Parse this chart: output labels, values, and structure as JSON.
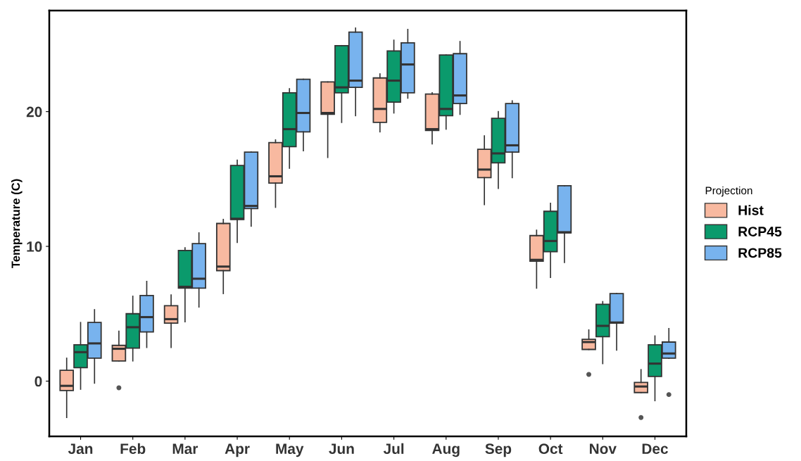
{
  "chart_data": {
    "type": "box",
    "ylabel": "Temperature (C)",
    "legend_title": "Projection",
    "legend": "right",
    "categories": [
      "Jan",
      "Feb",
      "Mar",
      "Apr",
      "May",
      "Jun",
      "Jul",
      "Aug",
      "Sep",
      "Oct",
      "Nov",
      "Dec"
    ],
    "ylim": [
      -4.1,
      27.5
    ],
    "yticks": [
      0,
      10,
      20
    ],
    "grid": false,
    "series": [
      {
        "name": "Hist",
        "color": "#f8b9a0",
        "boxes": [
          {
            "low": -2.7,
            "q1": -0.7,
            "median": -0.35,
            "q3": 0.8,
            "high": 1.7
          },
          {
            "low": 1.5,
            "q1": 1.5,
            "median": 2.4,
            "q3": 2.65,
            "high": 3.7,
            "outliers": [
              -0.5
            ]
          },
          {
            "low": 2.5,
            "q1": 4.3,
            "median": 4.6,
            "q3": 5.6,
            "high": 6.4
          },
          {
            "low": 6.5,
            "q1": 8.2,
            "median": 8.5,
            "q3": 11.7,
            "high": 12.0
          },
          {
            "low": 12.9,
            "q1": 14.7,
            "median": 15.2,
            "q3": 17.7,
            "high": 17.9
          },
          {
            "low": 16.6,
            "q1": 19.8,
            "median": 19.9,
            "q3": 22.2,
            "high": 22.2
          },
          {
            "low": 18.5,
            "q1": 19.2,
            "median": 20.2,
            "q3": 22.5,
            "high": 22.8
          },
          {
            "low": 17.6,
            "q1": 18.6,
            "median": 18.7,
            "q3": 21.3,
            "high": 21.4
          },
          {
            "low": 13.1,
            "q1": 15.1,
            "median": 15.7,
            "q3": 17.2,
            "high": 18.2
          },
          {
            "low": 6.9,
            "q1": 8.9,
            "median": 9.0,
            "q3": 10.8,
            "high": 11.2
          },
          {
            "low": 2.35,
            "q1": 2.35,
            "median": 2.9,
            "q3": 3.1,
            "high": 3.8,
            "outliers": [
              0.5
            ]
          },
          {
            "low": -0.85,
            "q1": -0.85,
            "median": -0.4,
            "q3": -0.1,
            "high": 0.85,
            "outliers": [
              -2.7
            ]
          }
        ]
      },
      {
        "name": "RCP45",
        "color": "#0b9a6c",
        "boxes": [
          {
            "low": -0.6,
            "q1": 1.0,
            "median": 2.15,
            "q3": 2.7,
            "high": 4.35
          },
          {
            "low": 1.5,
            "q1": 2.45,
            "median": 4.0,
            "q3": 5.0,
            "high": 6.3
          },
          {
            "low": 4.4,
            "q1": 6.9,
            "median": 7.0,
            "q3": 9.7,
            "high": 9.9
          },
          {
            "low": 10.3,
            "q1": 12.0,
            "median": 12.05,
            "q3": 16.0,
            "high": 16.4
          },
          {
            "low": 15.8,
            "q1": 17.4,
            "median": 18.7,
            "q3": 21.4,
            "high": 21.7
          },
          {
            "low": 19.2,
            "q1": 21.4,
            "median": 21.8,
            "q3": 24.9,
            "high": 24.9
          },
          {
            "low": 19.9,
            "q1": 20.7,
            "median": 22.3,
            "q3": 24.5,
            "high": 25.3
          },
          {
            "low": 18.7,
            "q1": 19.7,
            "median": 20.2,
            "q3": 24.2,
            "high": 24.2
          },
          {
            "low": 14.3,
            "q1": 16.2,
            "median": 16.9,
            "q3": 19.5,
            "high": 20.0
          },
          {
            "low": 7.7,
            "q1": 9.6,
            "median": 10.4,
            "q3": 12.6,
            "high": 13.2
          },
          {
            "low": 1.3,
            "q1": 3.3,
            "median": 4.1,
            "q3": 5.7,
            "high": 5.9
          },
          {
            "low": -1.45,
            "q1": 0.35,
            "median": 1.3,
            "q3": 2.7,
            "high": 3.35
          }
        ]
      },
      {
        "name": "RCP85",
        "color": "#78b3ee",
        "boxes": [
          {
            "low": -0.15,
            "q1": 1.7,
            "median": 2.8,
            "q3": 4.35,
            "high": 5.3
          },
          {
            "low": 2.5,
            "q1": 3.65,
            "median": 4.75,
            "q3": 6.35,
            "high": 7.4
          },
          {
            "low": 5.5,
            "q1": 6.9,
            "median": 7.6,
            "q3": 10.2,
            "high": 11.0
          },
          {
            "low": 11.5,
            "q1": 12.8,
            "median": 13.0,
            "q3": 17.0,
            "high": 17.0
          },
          {
            "low": 17.1,
            "q1": 18.5,
            "median": 19.9,
            "q3": 22.4,
            "high": 22.4
          },
          {
            "low": 19.7,
            "q1": 21.8,
            "median": 22.3,
            "q3": 25.9,
            "high": 26.2
          },
          {
            "low": 21.0,
            "q1": 21.4,
            "median": 23.5,
            "q3": 25.1,
            "high": 26.1
          },
          {
            "low": 19.8,
            "q1": 20.6,
            "median": 21.2,
            "q3": 24.3,
            "high": 25.2
          },
          {
            "low": 15.1,
            "q1": 17.0,
            "median": 17.5,
            "q3": 20.6,
            "high": 20.8
          },
          {
            "low": 8.8,
            "q1": 11.0,
            "median": 11.05,
            "q3": 14.5,
            "high": 14.5
          },
          {
            "low": 2.3,
            "q1": 4.3,
            "median": 4.35,
            "q3": 6.5,
            "high": 6.5
          },
          {
            "low": 1.7,
            "q1": 1.7,
            "median": 2.05,
            "q3": 2.9,
            "high": 3.9,
            "outliers": [
              -1.0
            ]
          }
        ]
      }
    ]
  }
}
